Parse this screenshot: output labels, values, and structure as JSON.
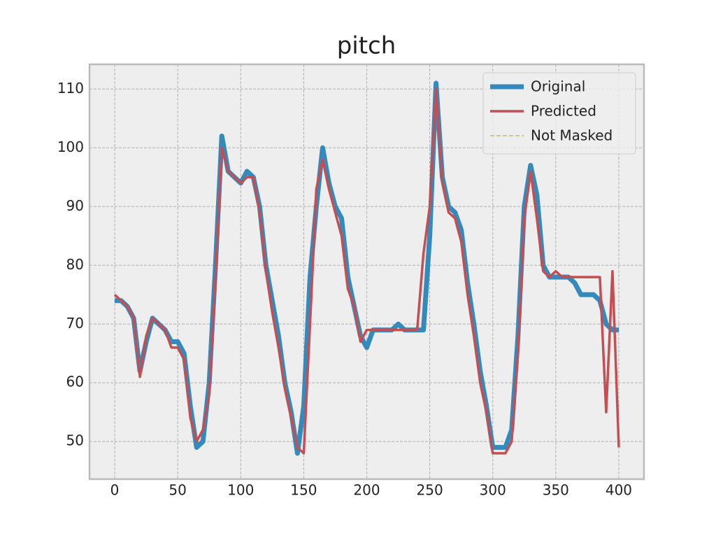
{
  "chart_data": {
    "type": "line",
    "title": "pitch",
    "x": [
      0,
      5,
      10,
      15,
      20,
      25,
      30,
      35,
      40,
      45,
      50,
      55,
      60,
      65,
      70,
      75,
      80,
      85,
      90,
      95,
      100,
      105,
      110,
      115,
      120,
      125,
      130,
      135,
      140,
      145,
      150,
      155,
      160,
      165,
      170,
      175,
      180,
      185,
      190,
      195,
      200,
      205,
      210,
      215,
      220,
      225,
      230,
      235,
      240,
      245,
      250,
      255,
      260,
      265,
      270,
      275,
      280,
      285,
      290,
      295,
      300,
      305,
      310,
      315,
      320,
      325,
      330,
      335,
      340,
      345,
      350,
      355,
      360,
      365,
      370,
      375,
      380,
      385,
      390,
      395,
      400
    ],
    "series": [
      {
        "name": "Original",
        "color": "#348ABD",
        "width": 7,
        "dash": false,
        "values": [
          74,
          74,
          73,
          71,
          62,
          67,
          71,
          70,
          69,
          67,
          67,
          65,
          56,
          49,
          50,
          60,
          80,
          102,
          96,
          95,
          94,
          96,
          95,
          90,
          80,
          74,
          68,
          60,
          55,
          48,
          56,
          78,
          90,
          100,
          94,
          90,
          88,
          78,
          73,
          68,
          66,
          69,
          69,
          69,
          69,
          70,
          69,
          69,
          69,
          69,
          85,
          111,
          95,
          90,
          89,
          86,
          77,
          70,
          62,
          56,
          49,
          49,
          49,
          52,
          68,
          90,
          97,
          92,
          80,
          78,
          78,
          78,
          78,
          77,
          75,
          75,
          75,
          74,
          70,
          69,
          69
        ]
      },
      {
        "name": "Predicted",
        "color": "#C44E52",
        "width": 3.5,
        "dash": false,
        "values": [
          75,
          74,
          73,
          71,
          61,
          68,
          71,
          70,
          69,
          66,
          66,
          64,
          54,
          50,
          52,
          58,
          78,
          100,
          96,
          95,
          94,
          95,
          95,
          89,
          79,
          72,
          66,
          59,
          54,
          49,
          48,
          70,
          93,
          98,
          93,
          89,
          85,
          76,
          73,
          67,
          69,
          69,
          69,
          69,
          69,
          69,
          69,
          69,
          69,
          82,
          90,
          110,
          94,
          89,
          88,
          84,
          75,
          68,
          60,
          55,
          48,
          48,
          48,
          50,
          65,
          88,
          96,
          88,
          79,
          78,
          79,
          78,
          78,
          78,
          78,
          78,
          78,
          78,
          55,
          79,
          49
        ]
      },
      {
        "name": "Not Masked",
        "color": "#CCB974",
        "width": 1.5,
        "dash": true,
        "values": [
          null,
          null,
          null,
          null,
          null,
          null,
          null,
          null,
          null,
          null,
          null,
          null,
          null,
          null,
          null,
          null,
          null,
          null,
          null,
          null,
          null,
          null,
          null,
          null,
          null,
          null,
          null,
          null,
          null,
          null,
          null,
          null,
          null,
          null,
          null,
          null,
          null,
          null,
          null,
          null,
          null,
          null,
          null,
          null,
          null,
          null,
          null,
          null,
          null,
          null,
          null,
          null,
          null,
          null,
          null,
          null,
          null,
          null,
          null,
          null,
          null,
          null,
          null,
          null,
          null,
          null,
          null,
          null,
          null,
          null,
          null,
          null,
          null,
          null,
          null,
          null,
          null,
          null,
          null,
          null,
          null
        ]
      }
    ],
    "xlim": [
      -20,
      420
    ],
    "xticks": [
      0,
      50,
      100,
      150,
      200,
      250,
      300,
      350,
      400
    ],
    "ylim": [
      43.6,
      114.2
    ],
    "yticks": [
      50,
      60,
      70,
      80,
      90,
      100,
      110
    ],
    "grid": true,
    "legend": "upper right"
  }
}
